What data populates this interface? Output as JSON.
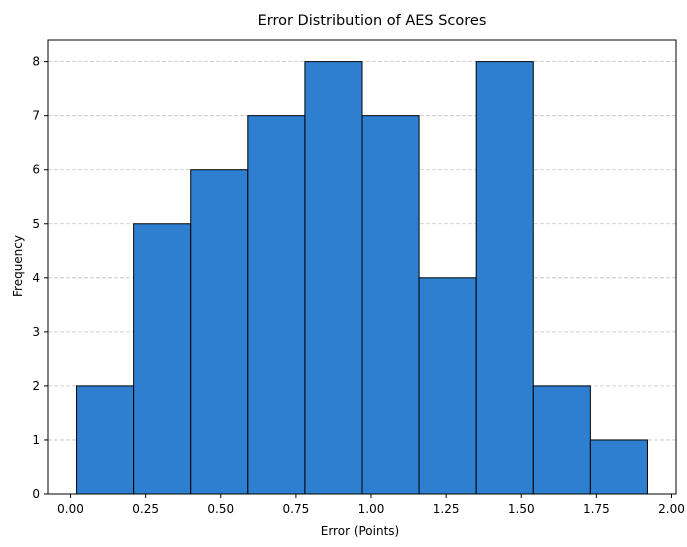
{
  "chart_data": {
    "type": "bar",
    "title": "Error Distribution of AES Scores",
    "xlabel": "Error (Points)",
    "ylabel": "Frequency",
    "bins": [
      {
        "start": 0.02,
        "end": 0.21,
        "count": 2
      },
      {
        "start": 0.21,
        "end": 0.4,
        "count": 5
      },
      {
        "start": 0.4,
        "end": 0.59,
        "count": 6
      },
      {
        "start": 0.59,
        "end": 0.78,
        "count": 7
      },
      {
        "start": 0.78,
        "end": 0.97,
        "count": 8
      },
      {
        "start": 0.97,
        "end": 1.16,
        "count": 7
      },
      {
        "start": 1.16,
        "end": 1.35,
        "count": 4
      },
      {
        "start": 1.35,
        "end": 1.54,
        "count": 8
      },
      {
        "start": 1.54,
        "end": 1.73,
        "count": 2
      },
      {
        "start": 1.73,
        "end": 1.92,
        "count": 1
      }
    ],
    "xlim": [
      -0.075,
      2.015
    ],
    "ylim": [
      0,
      8.4
    ],
    "xticks": [
      "0.00",
      "0.25",
      "0.50",
      "0.75",
      "1.00",
      "1.25",
      "1.50",
      "1.75",
      "2.00"
    ],
    "xtick_values": [
      0,
      0.25,
      0.5,
      0.75,
      1.0,
      1.25,
      1.5,
      1.75,
      2.0
    ],
    "yticks": [
      "0",
      "1",
      "2",
      "3",
      "4",
      "5",
      "6",
      "7",
      "8"
    ],
    "ytick_values": [
      0,
      1,
      2,
      3,
      4,
      5,
      6,
      7,
      8
    ],
    "grid": "y-dashed",
    "bar_color": "#2f7fd0",
    "edge_color": "#000000",
    "grid_color": "#c4c4c4"
  }
}
